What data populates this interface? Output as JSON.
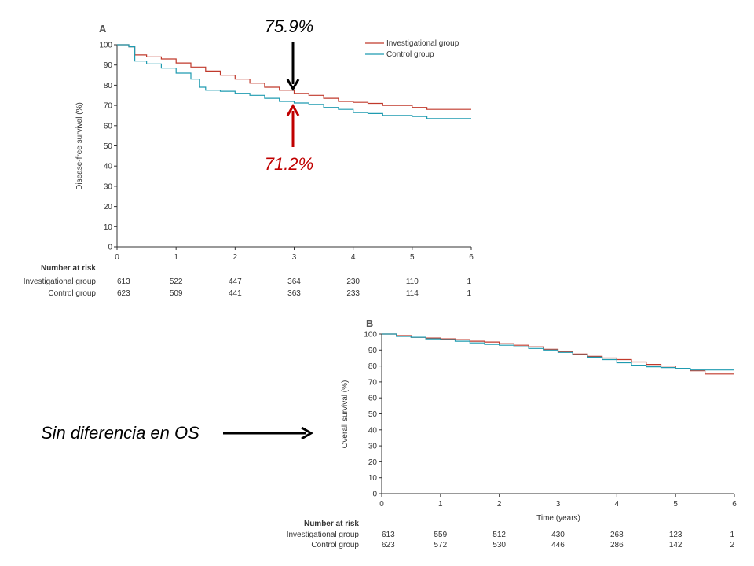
{
  "annotations": {
    "top_value": "75.9%",
    "bottom_value": "71.2%",
    "top_color": "#000000",
    "bottom_color": "#c00000",
    "side_note": "Sin diferencia en OS"
  },
  "colors": {
    "investigational": "#c0392b",
    "control": "#1f9bb0",
    "axis": "#333333"
  },
  "chart_data": [
    {
      "panel": "A",
      "type": "line",
      "ylabel": "Disease-free survival (%)",
      "xlabel": "",
      "xlim": [
        0,
        6
      ],
      "ylim": [
        0,
        100
      ],
      "xticks": [
        0,
        1,
        2,
        3,
        4,
        5,
        6
      ],
      "yticks": [
        0,
        10,
        20,
        30,
        40,
        50,
        60,
        70,
        80,
        90,
        100
      ],
      "legend": [
        "Investigational group",
        "Control group"
      ],
      "legend_position": "top-right",
      "series": [
        {
          "name": "Investigational group",
          "x": [
            0,
            0.2,
            0.3,
            0.5,
            0.75,
            1,
            1.25,
            1.5,
            1.75,
            2,
            2.25,
            2.5,
            2.75,
            3,
            3.25,
            3.5,
            3.75,
            4,
            4.25,
            4.5,
            4.75,
            5,
            5.25,
            5.5,
            6
          ],
          "y": [
            100,
            99,
            95,
            94,
            93,
            91,
            89,
            87,
            85,
            83,
            81,
            79,
            77.5,
            75.9,
            75,
            73.5,
            72,
            71.5,
            71,
            70,
            70,
            69,
            68,
            68,
            68
          ]
        },
        {
          "name": "Control group",
          "x": [
            0,
            0.2,
            0.3,
            0.5,
            0.75,
            1,
            1.25,
            1.4,
            1.5,
            1.75,
            2,
            2.25,
            2.5,
            2.75,
            3,
            3.25,
            3.5,
            3.75,
            4,
            4.25,
            4.5,
            4.75,
            5,
            5.25,
            5.5,
            6
          ],
          "y": [
            100,
            99,
            92,
            90.5,
            88.5,
            86,
            83,
            79,
            77.5,
            77,
            76,
            75,
            73.5,
            72,
            71.2,
            70.5,
            69,
            68,
            66.5,
            66,
            65,
            65,
            64.5,
            63.5,
            63.5,
            63.5
          ]
        }
      ],
      "number_at_risk": {
        "heading": "Number at risk",
        "rows": [
          {
            "label": "Investigational group",
            "values": [
              "613",
              "522",
              "447",
              "364",
              "230",
              "110",
              "1"
            ]
          },
          {
            "label": "Control group",
            "values": [
              "623",
              "509",
              "441",
              "363",
              "233",
              "114",
              "1"
            ]
          }
        ]
      }
    },
    {
      "panel": "B",
      "type": "line",
      "ylabel": "Overall survival (%)",
      "xlabel": "Time (years)",
      "xlim": [
        0,
        6
      ],
      "ylim": [
        0,
        100
      ],
      "xticks": [
        0,
        1,
        2,
        3,
        4,
        5,
        6
      ],
      "yticks": [
        0,
        10,
        20,
        30,
        40,
        50,
        60,
        70,
        80,
        90,
        100
      ],
      "series": [
        {
          "name": "Investigational group",
          "x": [
            0,
            0.25,
            0.5,
            0.75,
            1,
            1.25,
            1.5,
            1.75,
            2,
            2.25,
            2.5,
            2.75,
            3,
            3.25,
            3.5,
            3.75,
            4,
            4.25,
            4.5,
            4.75,
            5,
            5.25,
            5.5,
            6
          ],
          "y": [
            100,
            99,
            98,
            97.5,
            97,
            96.5,
            95.5,
            95,
            94,
            93,
            92,
            90.5,
            89,
            87.5,
            86,
            85,
            84,
            82.5,
            81,
            80,
            78.5,
            77,
            75,
            75
          ]
        },
        {
          "name": "Control group",
          "x": [
            0,
            0.25,
            0.5,
            0.75,
            1,
            1.25,
            1.5,
            1.75,
            2,
            2.25,
            2.5,
            2.75,
            3,
            3.25,
            3.5,
            3.75,
            4,
            4.25,
            4.5,
            4.75,
            5,
            5.25,
            5.5,
            6
          ],
          "y": [
            100,
            98.5,
            98,
            97,
            96.5,
            95.5,
            94.5,
            93.5,
            93,
            92,
            91,
            90,
            88.5,
            87,
            85.5,
            84,
            82,
            80.5,
            79.5,
            79,
            78.5,
            77.5,
            77.5,
            77.5
          ]
        }
      ],
      "number_at_risk": {
        "heading": "Number at risk",
        "rows": [
          {
            "label": "Investigational group",
            "values": [
              "613",
              "559",
              "512",
              "430",
              "268",
              "123",
              "1"
            ]
          },
          {
            "label": "Control group",
            "values": [
              "623",
              "572",
              "530",
              "446",
              "286",
              "142",
              "2"
            ]
          }
        ]
      }
    }
  ]
}
